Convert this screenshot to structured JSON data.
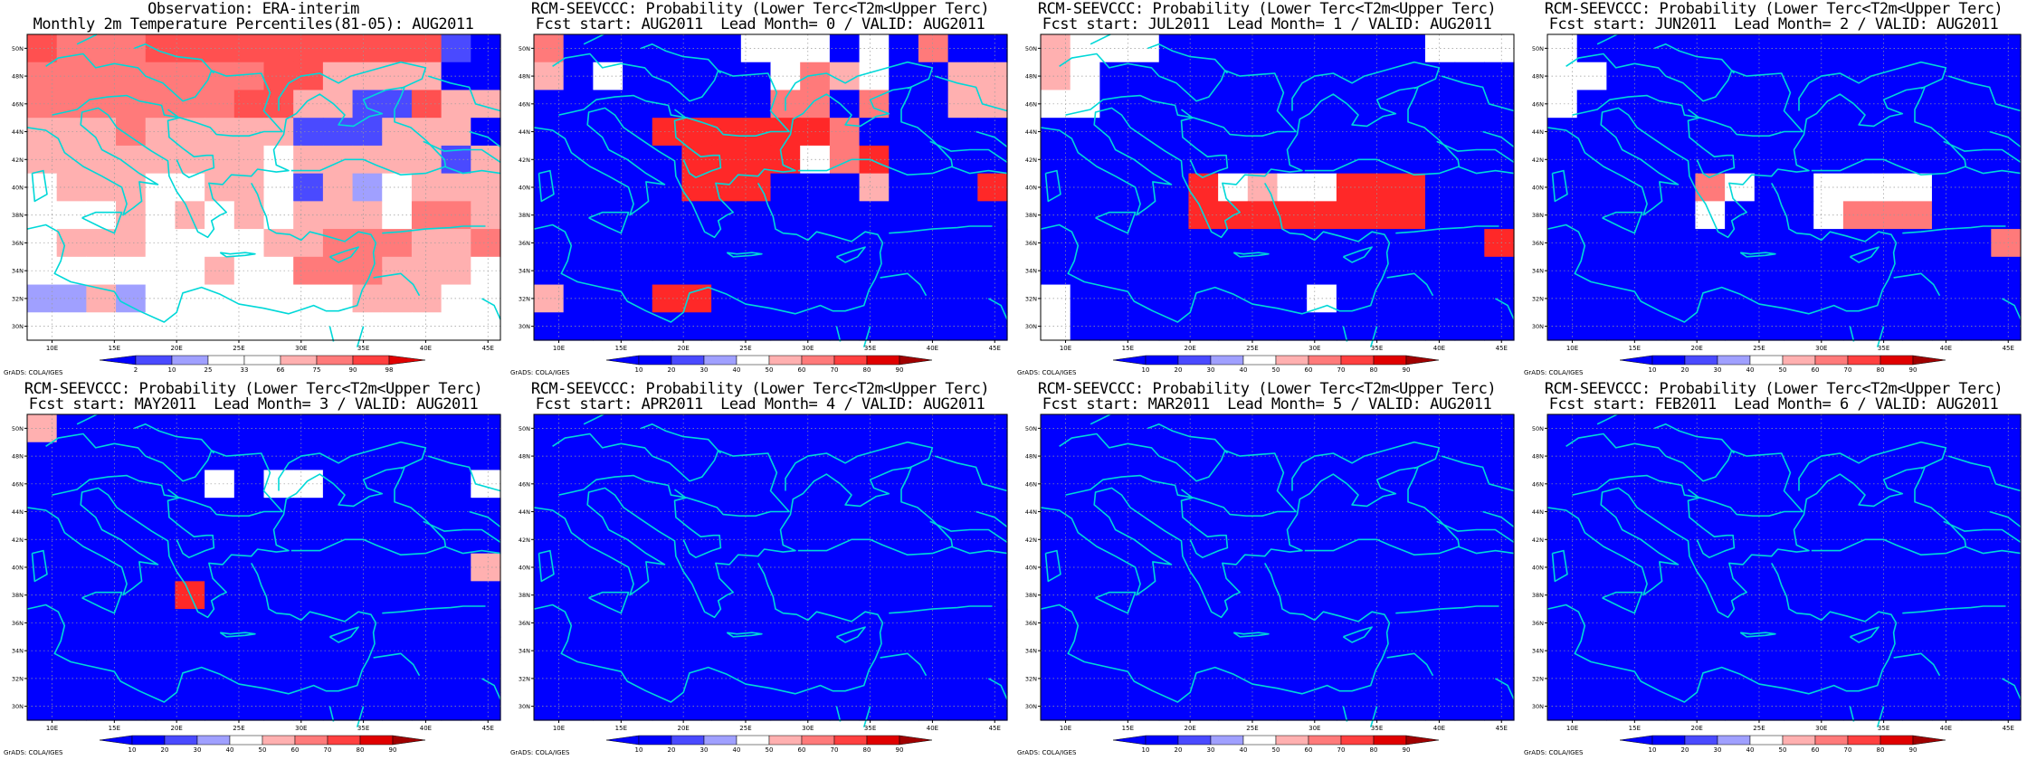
{
  "credit": "GrADS: COLA/IGES",
  "x_ticks": [
    "10E",
    "15E",
    "20E",
    "25E",
    "30E",
    "35E",
    "40E",
    "45E"
  ],
  "y_ticks": [
    "30N",
    "32N",
    "34N",
    "36N",
    "38N",
    "40N",
    "42N",
    "44N",
    "46N",
    "48N",
    "50N"
  ],
  "colors": {
    "blue": "#0000ff",
    "blue2": "#4a4aff",
    "blue3": "#a0a0ff",
    "white": "#ffffff",
    "pink1": "#ffb0b0",
    "pink2": "#ff7a7a",
    "red1": "#ff5050",
    "red2": "#ff2828",
    "red3": "#e00000",
    "darkred": "#a00000",
    "coast": "#00d8d8",
    "grid": "#9a9a9a"
  },
  "panels": [
    {
      "title1": "Observation: ERA-interim",
      "title2": "Monthly 2m Temperature Percentiles(81-05): AUG2011",
      "colorbar": {
        "labels": [
          "2",
          "10",
          "25",
          "33",
          "66",
          "75",
          "90",
          "98"
        ],
        "colors": [
          "#0000ff",
          "#4a4aff",
          "#a0a0ff",
          "#ffffff",
          "#ffffff",
          "#ffb0b0",
          "#ff7a7a",
          "#ff4040",
          "#e00000"
        ]
      },
      "grid": [
        "fgggffffffffffc",
        "ggggggggffeeee",
        "gggggggffeeccfee",
        "eeegeeeeeccceee",
        "eeeeeeeeweeeeece",
        "weeewweewcedweee",
        "wwweweweweeewgge",
        "weeewwwweegggeeg",
        "wwwwwwewwgggeeew",
        "ddedwwwwwwweeeww",
        "wwwwwwwwwwwwwwww"
      ]
    },
    {
      "title1": "RCM-SEEVCCC: Probability (Lower Terc<T2m<Upper Terc)",
      "title2": "Fcst start: AUG2011  Lead Month= 0 / VALID: AUG2011",
      "colorbar": {
        "labels": [
          "10",
          "20",
          "30",
          "40",
          "50",
          "60",
          "70",
          "80",
          "90"
        ],
        "colors": [
          "#0000ff",
          "#0000ff",
          "#4a4aff",
          "#a0a0ff",
          "#ffffff",
          "#ffb0b0",
          "#ff7a7a",
          "#ff4040",
          "#e00000",
          "#a00000"
        ]
      },
      "grid": [
        "gbbbbbbwwwbwbgbb",
        "ebwbbbbbwgewbbee",
        "bbbbbbbbggbgbbee",
        "bbbbhhhhhhgbbbbb",
        "bbbbbhhhhwghbbbb",
        "bbbbbhhhbbbebbbh",
        "bbbbbbbbbbbbbbbb",
        "bbbbbbbbbbbbbbbb",
        "bbbbbbbbbbbbbbbb",
        "ebbbhhbbbbbbbbbb",
        "bbbbbbbbbbbbbbbb"
      ]
    },
    {
      "title1": "RCM-SEEVCCC: Probability (Lower Terc<T2m<Upper Terc)",
      "title2": "Fcst start: JUL2011  Lead Month= 1 / VALID: AUG2011",
      "colorbar": {
        "labels": [
          "10",
          "20",
          "30",
          "40",
          "50",
          "60",
          "70",
          "80",
          "90"
        ],
        "colors": [
          "#0000ff",
          "#0000ff",
          "#4a4aff",
          "#a0a0ff",
          "#ffffff",
          "#ffb0b0",
          "#ff7a7a",
          "#ff4040",
          "#e00000",
          "#a00000"
        ]
      },
      "grid": [
        "ewwwbbbbbbbbbwww",
        "ewbbbbbbbbbbbbbb",
        "wwbbbbbbbbbbbbbb",
        "bbbbbbbbbbbbbbbb",
        "bbbbbbbbbbbbbbbb",
        "bbbbbhwewwhhhbbb",
        "bbbbbhhhhhhhhbbb",
        "bbbbbbbbbbbbbbbh",
        "bbbbbbbbbbbbbbbb",
        "wbbbbbbbbwbbbbbb",
        "wbbbbbbbbbbbbbbb"
      ]
    },
    {
      "title1": "RCM-SEEVCCC: Probability (Lower Terc<T2m<Upper Terc)",
      "title2": "Fcst start: JUN2011  Lead Month= 2 / VALID: AUG2011",
      "colorbar": {
        "labels": [
          "10",
          "20",
          "30",
          "40",
          "50",
          "60",
          "70",
          "80",
          "90"
        ],
        "colors": [
          "#0000ff",
          "#0000ff",
          "#4a4aff",
          "#a0a0ff",
          "#ffffff",
          "#ffb0b0",
          "#ff7a7a",
          "#ff4040",
          "#e00000",
          "#a00000"
        ]
      },
      "grid": [
        "wbbbbbbbbbbbbbbb",
        "wwbbbbbbbbbbbbbb",
        "wbbbbbbbbbbbbbbb",
        "bbbbbbbbbbbbbbbb",
        "bbbbbbbbbbbbbbbb",
        "bbbbbgwbbwwwwbbb",
        "bbbbbwbbbwgggbbb",
        "bbbbbbbbbbbbbbbg",
        "bbbbbbbbbbbbbbbb",
        "bbbbbbbbbbbbbbbb",
        "bbbbbbbbbbbbbbbb"
      ]
    },
    {
      "title1": "RCM-SEEVCCC: Probability (Lower Terc<T2m<Upper Terc)",
      "title2": "Fcst start: MAY2011  Lead Month= 3 / VALID: AUG2011",
      "colorbar": {
        "labels": [
          "10",
          "20",
          "30",
          "40",
          "50",
          "60",
          "70",
          "80",
          "90"
        ],
        "colors": [
          "#0000ff",
          "#0000ff",
          "#4a4aff",
          "#a0a0ff",
          "#ffffff",
          "#ffb0b0",
          "#ff7a7a",
          "#ff4040",
          "#e00000",
          "#a00000"
        ]
      },
      "grid": [
        "ebbbbbbbbbbbbbbb",
        "bbbbbbbbbbbbbbbb",
        "bbbbbbwbwwbbbbbw",
        "bbbbbbbbbbbbbbbb",
        "bbbbbbbbbbbbbbbb",
        "bbbbbbbbbbbbbbbe",
        "bbbbbhbbbbbbbbbb",
        "bbbbbbbbbbbbbbbb",
        "bbbbbbbbbbbbbbbb",
        "bbbbbbbbbbbbbbbb",
        "bbbbbbbbbbbbbbbb"
      ]
    },
    {
      "title1": "RCM-SEEVCCC: Probability (Lower Terc<T2m<Upper Terc)",
      "title2": "Fcst start: APR2011  Lead Month= 4 / VALID: AUG2011",
      "colorbar": {
        "labels": [
          "10",
          "20",
          "30",
          "40",
          "50",
          "60",
          "70",
          "80",
          "90"
        ],
        "colors": [
          "#0000ff",
          "#0000ff",
          "#4a4aff",
          "#a0a0ff",
          "#ffffff",
          "#ffb0b0",
          "#ff7a7a",
          "#ff4040",
          "#e00000",
          "#a00000"
        ]
      },
      "grid": [
        "bbbbbbbbbbbbbbbb",
        "bbbbbbbbbbbbbbbb",
        "bbbbbbbbbbbbbbbb",
        "bbbbbbbbbbbbbbbb",
        "bbbbbbbbbbbbbbbb",
        "bbbbbbbbbbbbbbbb",
        "bbbbbbbbbbbbbbbb",
        "bbbbbbbbbbbbbbbb",
        "bbbbbbbbbbbbbbbb",
        "bbbbbbbbbbbbbbbb",
        "bbbbbbbbbbbbbbbb"
      ]
    },
    {
      "title1": "RCM-SEEVCCC: Probability (Lower Terc<T2m<Upper Terc)",
      "title2": "Fcst start: MAR2011  Lead Month= 5 / VALID: AUG2011",
      "colorbar": {
        "labels": [
          "10",
          "20",
          "30",
          "40",
          "50",
          "60",
          "70",
          "80",
          "90"
        ],
        "colors": [
          "#0000ff",
          "#0000ff",
          "#4a4aff",
          "#a0a0ff",
          "#ffffff",
          "#ffb0b0",
          "#ff7a7a",
          "#ff4040",
          "#e00000",
          "#a00000"
        ]
      },
      "grid": [
        "bbbbbbbbbbbbbbbb",
        "bbbbbbbbbbbbbbbb",
        "bbbbbbbbbbbbbbbb",
        "bbbbbbbbbbbbbbbb",
        "bbbbbbbbbbbbbbbb",
        "bbbbbbbbbbbbbbbb",
        "bbbbbbbbbbbbbbbb",
        "bbbbbbbbbbbbbbbb",
        "bbbbbbbbbbbbbbbb",
        "bbbbbbbbbbbbbbbb",
        "bbbbbbbbbbbbbbbb"
      ]
    },
    {
      "title1": "RCM-SEEVCCC: Probability (Lower Terc<T2m<Upper Terc)",
      "title2": "Fcst start: FEB2011  Lead Month= 6 / VALID: AUG2011",
      "colorbar": {
        "labels": [
          "10",
          "20",
          "30",
          "40",
          "50",
          "60",
          "70",
          "80",
          "90"
        ],
        "colors": [
          "#0000ff",
          "#0000ff",
          "#4a4aff",
          "#a0a0ff",
          "#ffffff",
          "#ffb0b0",
          "#ff7a7a",
          "#ff4040",
          "#e00000",
          "#a00000"
        ]
      },
      "grid": [
        "bbbbbbbbbbbbbbbb",
        "bbbbbbbbbbbbbbbb",
        "bbbbbbbbbbbbbbbb",
        "bbbbbbbbbbbbbbbb",
        "bbbbbbbbbbbbbbbb",
        "bbbbbbbbbbbbbbbb",
        "bbbbbbbbbbbbbbbb",
        "bbbbbbbbbbbbbbbb",
        "bbbbbbbbbbbbbbbb",
        "bbbbbbbbbbbbbbbb",
        "bbbbbbbbbbbbbbbb"
      ]
    }
  ]
}
